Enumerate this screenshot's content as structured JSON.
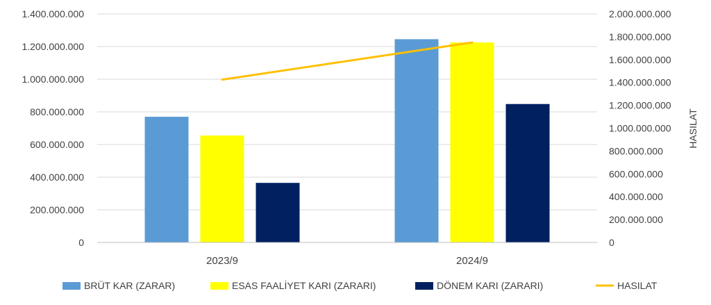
{
  "chart_data": {
    "type": "bar",
    "categories": [
      "2023/9",
      "2024/9"
    ],
    "series": [
      {
        "name": "BRÜT KAR (ZARAR)",
        "axis": "left",
        "kind": "bar",
        "color": "#5B9BD5",
        "values": [
          770000000,
          1245000000
        ]
      },
      {
        "name": "ESAS FAALİYET KARI (ZARARI)",
        "axis": "left",
        "kind": "bar",
        "color": "#FFFF00",
        "values": [
          655000000,
          1225000000
        ]
      },
      {
        "name": "DÖNEM KARI (ZARARI)",
        "axis": "left",
        "kind": "bar",
        "color": "#002060",
        "values": [
          365000000,
          848000000
        ]
      },
      {
        "name": "HASILAT",
        "axis": "right",
        "kind": "line",
        "color": "#FFC000",
        "values": [
          1425000000,
          1750000000
        ]
      }
    ],
    "y_left": {
      "label": "",
      "ylim": [
        0,
        1400000000
      ],
      "ticks": [
        "0",
        "200.000.000",
        "400.000.000",
        "600.000.000",
        "800.000.000",
        "1.000.000.000",
        "1.200.000.000",
        "1.400.000.000"
      ]
    },
    "y_right": {
      "label": "HASILAT",
      "ylim": [
        0,
        2000000000
      ],
      "ticks": [
        "0",
        "200.000.000",
        "400.000.000",
        "600.000.000",
        "800.000.000",
        "1.000.000.000",
        "1.200.000.000",
        "1.400.000.000",
        "1.600.000.000",
        "1.800.000.000",
        "2.000.000.000"
      ]
    },
    "gridlines": true,
    "legend_position": "bottom"
  }
}
